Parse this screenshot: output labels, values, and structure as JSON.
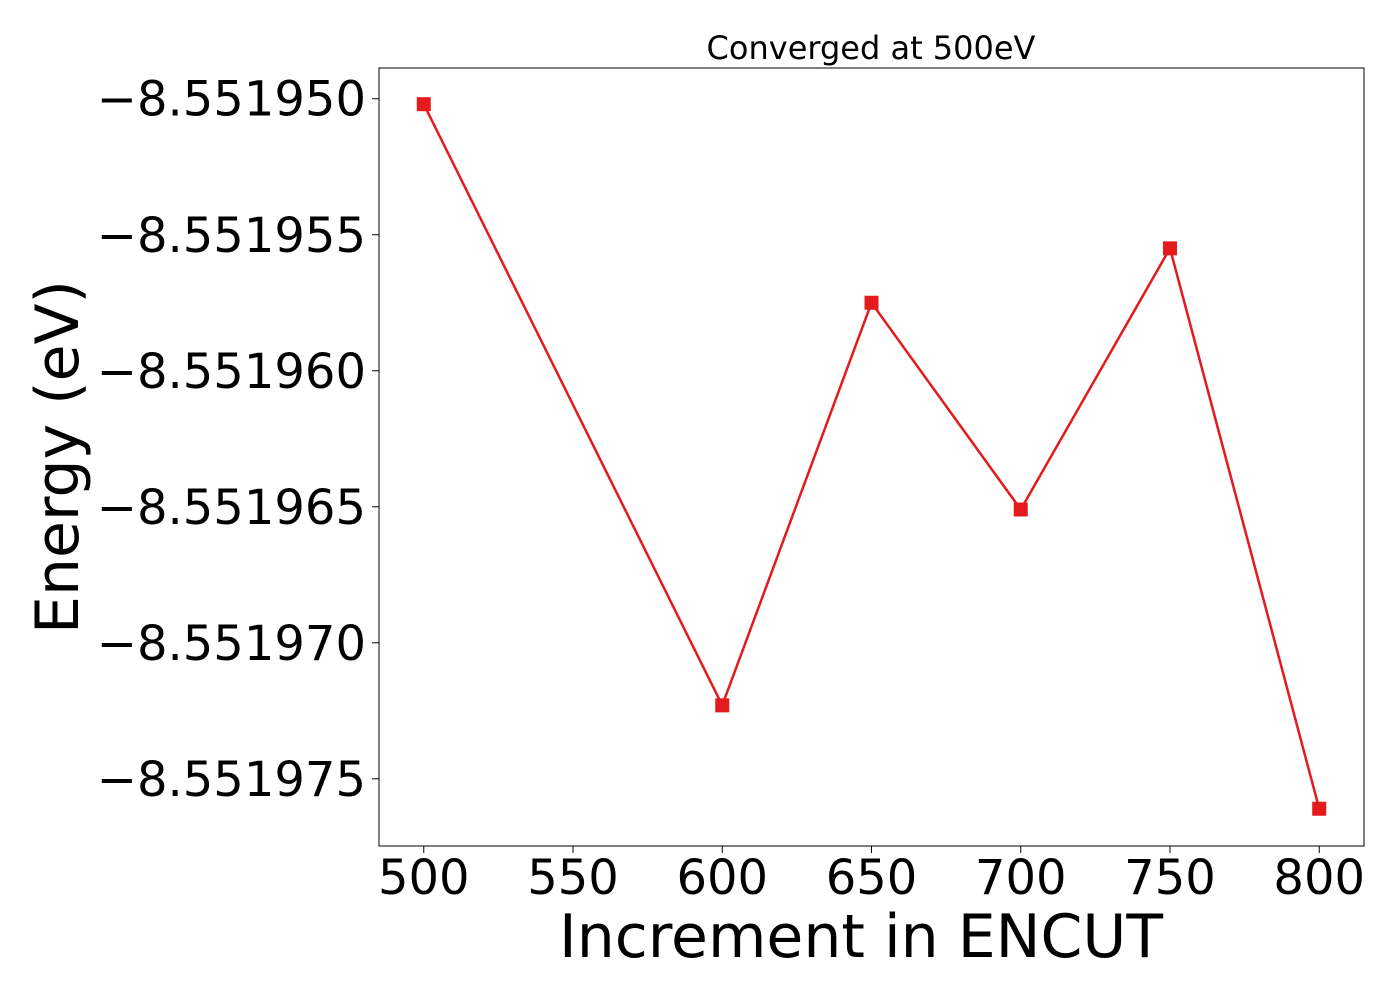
{
  "chart_data": {
    "type": "line",
    "title": "Converged at 500eV",
    "xlabel": "Increment in ENCUT",
    "ylabel": "Energy (eV)",
    "x": [
      500,
      600,
      650,
      700,
      750,
      800
    ],
    "series": [
      {
        "values": [
          -8.5519502,
          -8.5519723,
          -8.5519575,
          -8.5519651,
          -8.5519555,
          -8.5519761
        ],
        "color": "#e41a1c",
        "marker": "square"
      }
    ],
    "xlim": [
      485,
      815
    ],
    "ylim": [
      -8.55197747,
      -8.55194887
    ],
    "xticks": [
      500,
      550,
      600,
      650,
      700,
      750,
      800
    ],
    "xtick_labels": [
      "500",
      "550",
      "600",
      "650",
      "700",
      "750",
      "800"
    ],
    "yticks": [
      -8.55195,
      -8.551955,
      -8.55196,
      -8.551965,
      -8.55197,
      -8.551975
    ],
    "ytick_labels": [
      "−8.551950",
      "−8.551955",
      "−8.551960",
      "−8.551965",
      "−8.551970",
      "−8.551975"
    ],
    "grid": false,
    "legend": false
  }
}
